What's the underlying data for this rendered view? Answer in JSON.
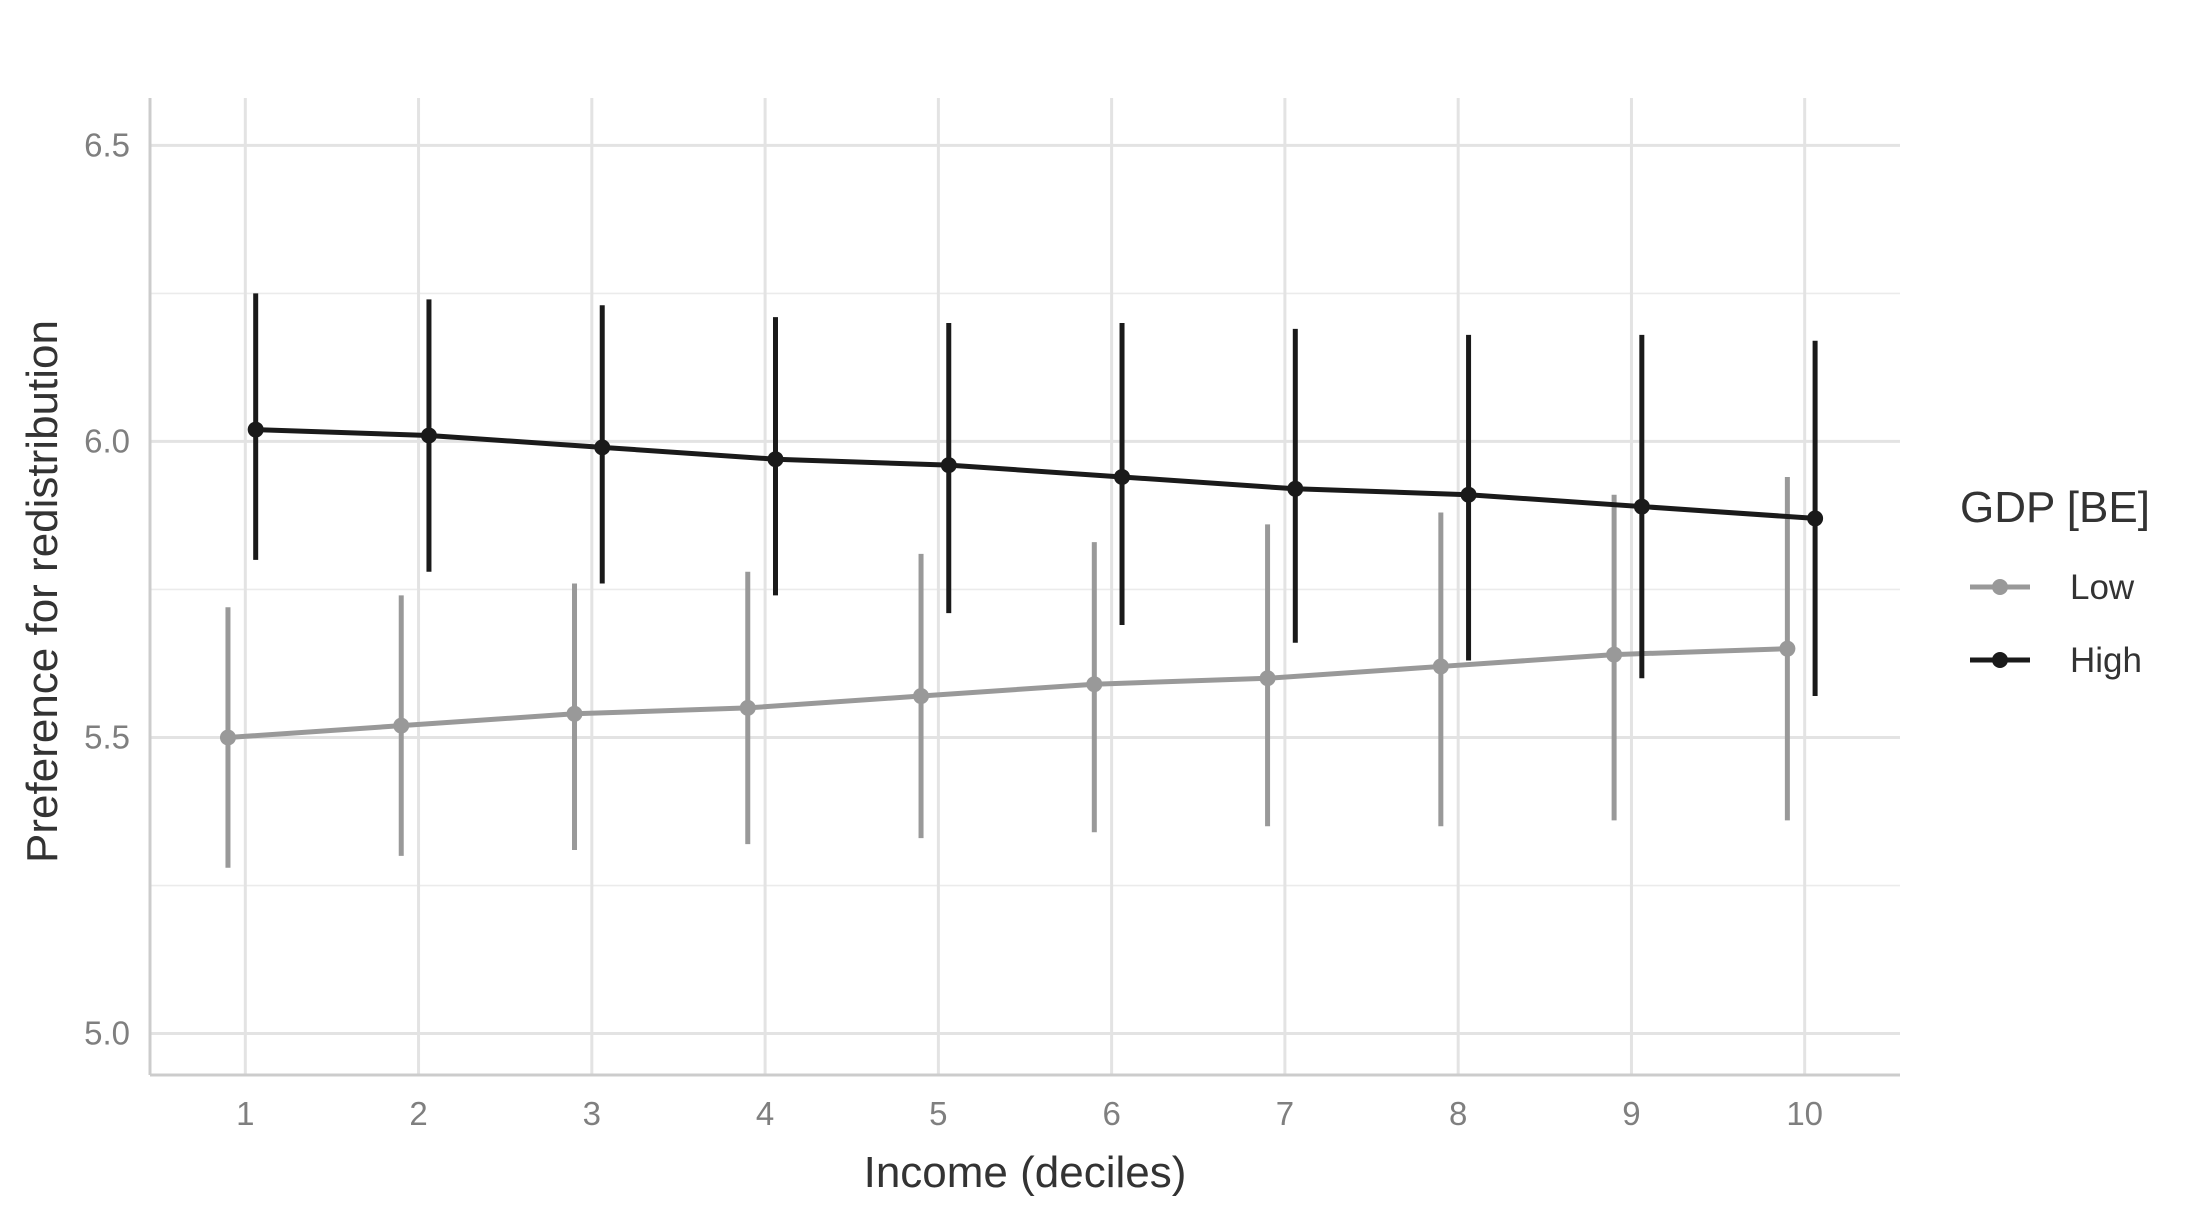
{
  "chart_data": {
    "type": "line",
    "title": "",
    "xlabel": "Income (deciles)",
    "ylabel": "Preference for redistribution",
    "x": [
      1,
      2,
      3,
      4,
      5,
      6,
      7,
      8,
      9,
      10
    ],
    "xticks": [
      "1",
      "2",
      "3",
      "4",
      "5",
      "6",
      "7",
      "8",
      "9",
      "10"
    ],
    "yticks": [
      "5.0",
      "5.5",
      "6.0",
      "6.5"
    ],
    "xlim": [
      0.45,
      10.55
    ],
    "ylim": [
      4.93,
      6.58
    ],
    "grid": true,
    "legend": {
      "title": "GDP [BE]",
      "placement": "right"
    },
    "series": [
      {
        "name": "Low",
        "color": "#999999",
        "values": [
          5.5,
          5.52,
          5.54,
          5.55,
          5.57,
          5.59,
          5.6,
          5.62,
          5.64,
          5.65
        ],
        "lower": [
          5.28,
          5.3,
          5.31,
          5.32,
          5.33,
          5.34,
          5.35,
          5.35,
          5.36,
          5.36
        ],
        "upper": [
          5.72,
          5.74,
          5.76,
          5.78,
          5.81,
          5.83,
          5.86,
          5.88,
          5.91,
          5.94
        ]
      },
      {
        "name": "High",
        "color": "#1a1a1a",
        "values": [
          6.02,
          6.01,
          5.99,
          5.97,
          5.96,
          5.94,
          5.92,
          5.91,
          5.89,
          5.87
        ],
        "lower": [
          5.8,
          5.78,
          5.76,
          5.74,
          5.71,
          5.69,
          5.66,
          5.63,
          5.6,
          5.57
        ],
        "upper": [
          6.25,
          6.24,
          6.23,
          6.21,
          6.2,
          6.2,
          6.19,
          6.18,
          6.18,
          6.17
        ]
      }
    ]
  }
}
